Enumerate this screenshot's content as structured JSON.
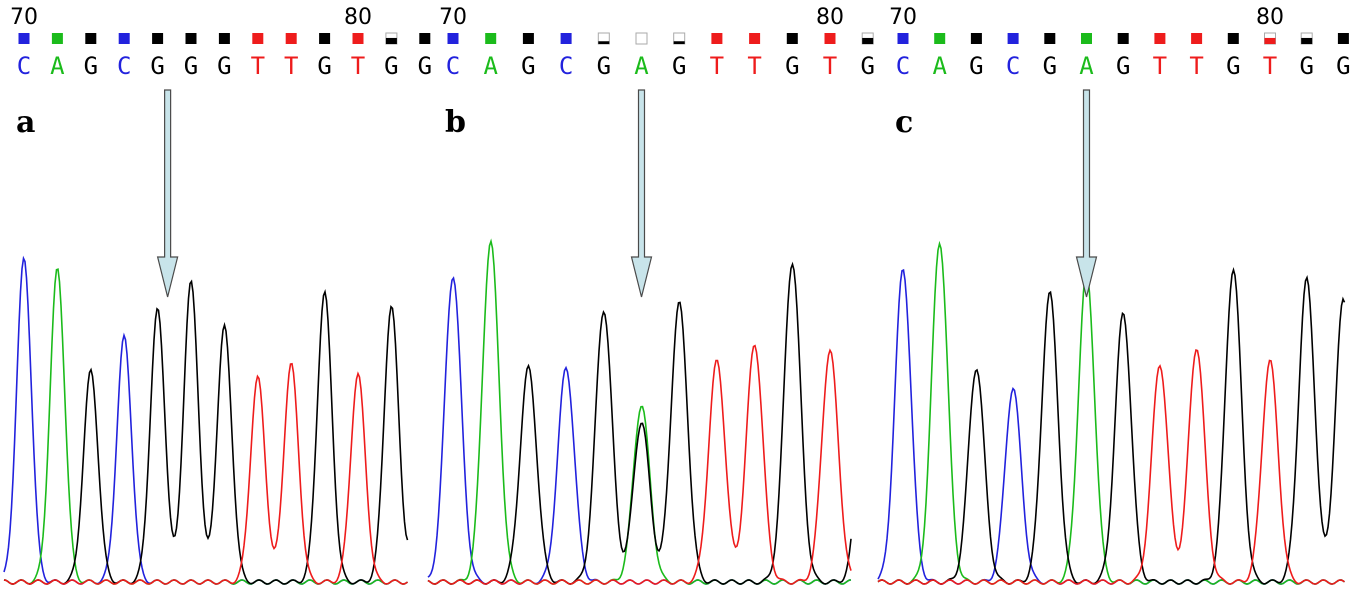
{
  "colors": {
    "A": "#1bbb1b",
    "C": "#2222dd",
    "G": "#000000",
    "T": "#ee1c1c",
    "arrow_fill": "#c8e4ea",
    "arrow_stroke": "#4a4a4a"
  },
  "chart_data": [
    {
      "type": "line",
      "panel_label": "a",
      "position_labels": [
        {
          "value": "70",
          "at_index": 0
        },
        {
          "value": "80",
          "at_index": 10
        }
      ],
      "bases": [
        "C",
        "A",
        "G",
        "C",
        "G",
        "G",
        "G",
        "T",
        "T",
        "G",
        "T",
        "G",
        "G"
      ],
      "quality": [
        "high",
        "high",
        "high",
        "high",
        "high",
        "high",
        "high",
        "high",
        "high",
        "high",
        "high",
        "mid",
        "high"
      ],
      "arrow_at_index": 4.3,
      "series": [
        {
          "base": "C",
          "peaks": [
            {
              "i": 0,
              "h": 0.95
            },
            {
              "i": 3,
              "h": 0.72
            }
          ]
        },
        {
          "base": "A",
          "peaks": [
            {
              "i": 1,
              "h": 0.92
            }
          ]
        },
        {
          "base": "G",
          "peaks": [
            {
              "i": 2,
              "h": 0.62
            },
            {
              "i": 4,
              "h": 0.8
            },
            {
              "i": 5,
              "h": 0.88
            },
            {
              "i": 6,
              "h": 0.75
            },
            {
              "i": 9,
              "h": 0.85
            },
            {
              "i": 11,
              "h": 0.81
            },
            {
              "i": 12,
              "h": 0.8
            }
          ]
        },
        {
          "base": "T",
          "peaks": [
            {
              "i": 7,
              "h": 0.6
            },
            {
              "i": 8,
              "h": 0.64
            },
            {
              "i": 10,
              "h": 0.61
            }
          ]
        }
      ]
    },
    {
      "type": "line",
      "panel_label": "b",
      "position_labels": [
        {
          "value": "70",
          "at_index": 0
        },
        {
          "value": "80",
          "at_index": 10
        }
      ],
      "bases": [
        "C",
        "A",
        "G",
        "C",
        "G",
        "A",
        "G",
        "T",
        "T",
        "G",
        "T",
        "G"
      ],
      "quality": [
        "high",
        "high",
        "high",
        "high",
        "low",
        "none",
        "low",
        "high",
        "high",
        "high",
        "high",
        "mid"
      ],
      "arrow_at_index": 5.0,
      "series": [
        {
          "base": "C",
          "peaks": [
            {
              "i": 0,
              "h": 0.9
            },
            {
              "i": 3,
              "h": 0.63
            }
          ]
        },
        {
          "base": "A",
          "peaks": [
            {
              "i": 1,
              "h": 1.0
            },
            {
              "i": 5,
              "h": 0.52
            }
          ]
        },
        {
          "base": "G",
          "peaks": [
            {
              "i": 2,
              "h": 0.63
            },
            {
              "i": 4,
              "h": 0.8
            },
            {
              "i": 5,
              "h": 0.47
            },
            {
              "i": 6,
              "h": 0.82
            },
            {
              "i": 9,
              "h": 0.94
            },
            {
              "i": 11,
              "h": 0.92
            }
          ]
        },
        {
          "base": "T",
          "peaks": [
            {
              "i": 7,
              "h": 0.65
            },
            {
              "i": 8,
              "h": 0.7
            },
            {
              "i": 10,
              "h": 0.68
            }
          ]
        }
      ]
    },
    {
      "type": "line",
      "panel_label": "c",
      "position_labels": [
        {
          "value": "70",
          "at_index": 0
        },
        {
          "value": "80",
          "at_index": 10
        }
      ],
      "bases": [
        "C",
        "A",
        "G",
        "C",
        "G",
        "A",
        "G",
        "T",
        "T",
        "G",
        "T",
        "G",
        "G"
      ],
      "quality": [
        "high",
        "high",
        "high",
        "high",
        "high",
        "high",
        "high",
        "high",
        "high",
        "high",
        "mid",
        "mid",
        "high"
      ],
      "arrow_at_index": 5.0,
      "series": [
        {
          "base": "C",
          "peaks": [
            {
              "i": 0,
              "h": 0.92
            },
            {
              "i": 3,
              "h": 0.57
            }
          ]
        },
        {
          "base": "A",
          "peaks": [
            {
              "i": 1,
              "h": 1.0
            },
            {
              "i": 5,
              "h": 0.91
            }
          ]
        },
        {
          "base": "G",
          "peaks": [
            {
              "i": 2,
              "h": 0.63
            },
            {
              "i": 4,
              "h": 0.85
            },
            {
              "i": 6,
              "h": 0.79
            },
            {
              "i": 9,
              "h": 0.92
            },
            {
              "i": 11,
              "h": 0.89
            },
            {
              "i": 12,
              "h": 0.83
            }
          ]
        },
        {
          "base": "T",
          "peaks": [
            {
              "i": 7,
              "h": 0.64
            },
            {
              "i": 8,
              "h": 0.69
            },
            {
              "i": 10,
              "h": 0.65
            }
          ]
        }
      ]
    }
  ]
}
